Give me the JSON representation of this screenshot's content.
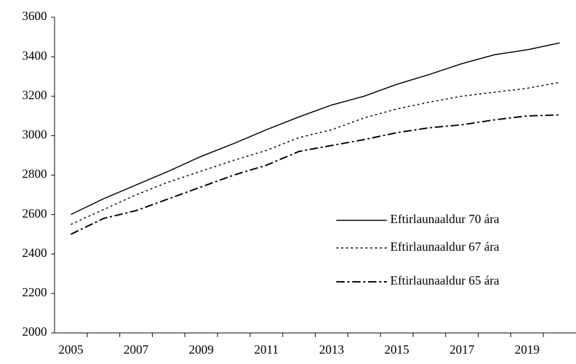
{
  "chart_data": {
    "type": "line",
    "categories": [
      "2005",
      null,
      "2007",
      null,
      "2009",
      null,
      "2011",
      null,
      "2013",
      null,
      "2015",
      null,
      "2017",
      null,
      "2019",
      null
    ],
    "series": [
      {
        "name": "Eftirlaunaaldur 70 ára",
        "color": "#000000",
        "values": [
          2600,
          2680,
          2750,
          2820,
          2895,
          2960,
          3030,
          3095,
          3155,
          3200,
          3260,
          3310,
          3365,
          3410,
          3435,
          3470
        ]
      },
      {
        "name": "Eftirlaunaaldur 67 ára",
        "color": "#000000",
        "values": [
          2550,
          2625,
          2700,
          2765,
          2820,
          2875,
          2925,
          2990,
          3030,
          3090,
          3135,
          3170,
          3200,
          3220,
          3240,
          3270
        ]
      },
      {
        "name": "Eftirlaunaaldur 65 ára",
        "color": "#000000",
        "values": [
          2500,
          2580,
          2620,
          2680,
          2740,
          2800,
          2850,
          2920,
          2950,
          2980,
          3015,
          3040,
          3055,
          3080,
          3100,
          3105
        ]
      }
    ],
    "ylim": [
      2000,
      3600
    ],
    "yticks": [
      2000,
      2200,
      2400,
      2600,
      2800,
      3000,
      3200,
      3400,
      3600
    ]
  }
}
